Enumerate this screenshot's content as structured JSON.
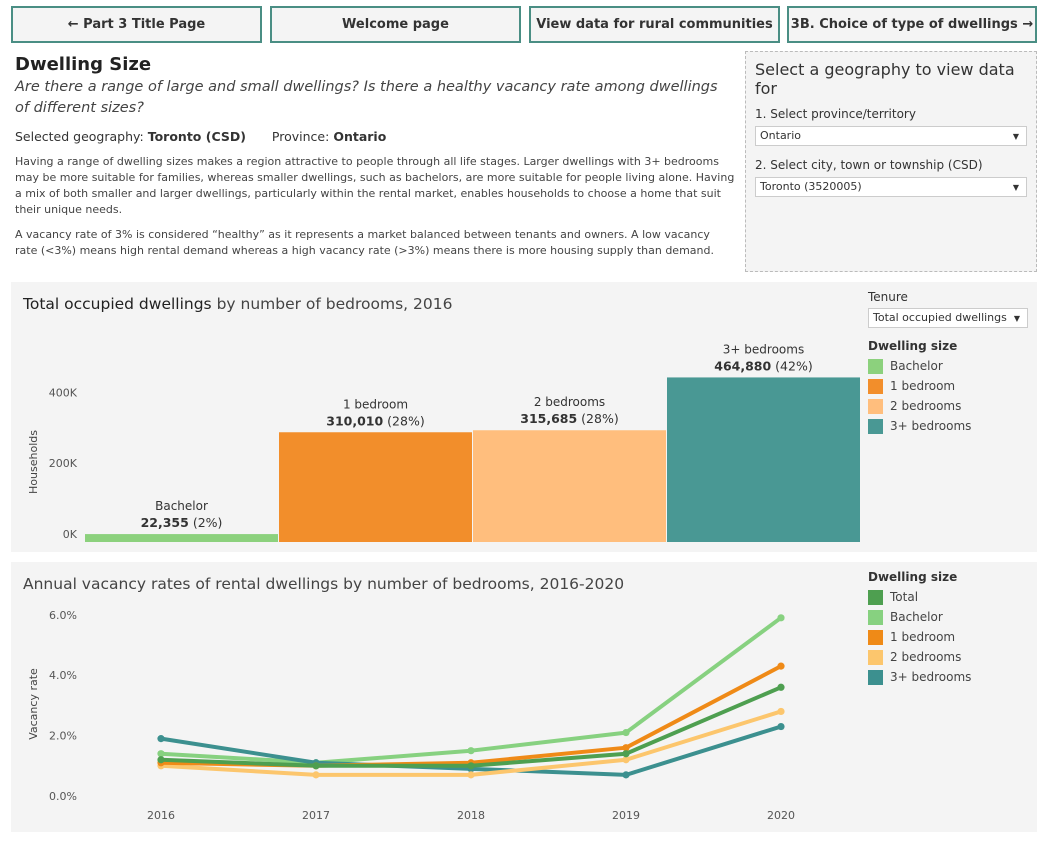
{
  "nav": {
    "btn1": "← Part 3 Title Page",
    "btn2": "Welcome page",
    "btn3": "View data for rural communities",
    "btn4": "3B. Choice of type of dwellings →"
  },
  "intro": {
    "title": "Dwelling Size",
    "subtitle": "Are there a range of large and small dwellings? Is there a healthy vacancy rate among dwellings of different sizes?",
    "geo_label": "Selected geography:",
    "geo_value": "Toronto (CSD)",
    "prov_label": "Province:",
    "prov_value": "Ontario",
    "para1": "Having a range of dwelling sizes makes a region attractive to people through all life stages. Larger dwellings with 3+ bedrooms may be more suitable for families, whereas smaller dwellings, such as bachelors, are more suitable for people living alone. Having a mix of both smaller and larger dwellings, particularly within the rental market, enables households to choose a home that suit their unique needs.",
    "para2": "A vacancy rate of 3% is considered “healthy” as it represents a market balanced between tenants and owners. A low vacancy rate (<3%) means high rental demand whereas a high vacancy rate (>3%) means there is more housing supply than demand."
  },
  "geo_selector": {
    "heading": "Select a geography to view data for",
    "province_label": "1. Select province/territory",
    "province_value": "Ontario",
    "csd_label": "2. Select city, town or township (CSD)",
    "csd_value": "Toronto (3520005)"
  },
  "colors": {
    "total": "#4e9f50",
    "bachelor": "#87d180",
    "one_bed": "#ef8a17",
    "two_bed": "#fcc66d",
    "three_bed": "#3c908f",
    "bar_bachelor": "#8cd17d",
    "bar_one": "#f28e2b",
    "bar_two": "#ffbe7d",
    "bar_three": "#499894"
  },
  "chart1": {
    "title_bold": "Total occupied dwellings",
    "title_rest": " by number of bedrooms, 2016",
    "tenure_label": "Tenure",
    "tenure_value": "Total occupied dwellings",
    "legend_title": "Dwelling size",
    "legend": [
      "Bachelor",
      "1 bedroom",
      "2 bedrooms",
      "3+ bedrooms"
    ]
  },
  "chart2": {
    "title": "Annual vacancy rates of rental dwellings by number of bedrooms, 2016-2020",
    "legend_title": "Dwelling size",
    "legend": [
      "Total",
      "Bachelor",
      "1 bedroom",
      "2 bedrooms",
      "3+ bedrooms"
    ]
  },
  "chart_data": [
    {
      "type": "bar",
      "categories": [
        "Bachelor",
        "1 bedroom",
        "2 bedrooms",
        "3+ bedrooms"
      ],
      "values": [
        22355,
        310010,
        315685,
        464880
      ],
      "value_labels": [
        "22,355",
        "310,010",
        "315,685",
        "464,880"
      ],
      "pct_labels": [
        "(2%)",
        "(28%)",
        "(28%)",
        "(42%)"
      ],
      "ylabel": "Households",
      "yticks": [
        "0K",
        "200K",
        "400K"
      ],
      "ylim": [
        0,
        500000
      ]
    },
    {
      "type": "line",
      "x": [
        "2016",
        "2017",
        "2018",
        "2019",
        "2020"
      ],
      "ylabel": "Vacancy rate",
      "yticks": [
        "0.0%",
        "2.0%",
        "4.0%",
        "6.0%"
      ],
      "ylim": [
        0,
        6.5
      ],
      "series": [
        {
          "name": "Bachelor",
          "values": [
            1.4,
            1.1,
            1.5,
            2.1,
            5.9
          ]
        },
        {
          "name": "3+ bedrooms",
          "values": [
            1.9,
            1.1,
            0.9,
            0.7,
            2.3
          ]
        },
        {
          "name": "2 bedrooms",
          "values": [
            1.0,
            0.7,
            0.7,
            1.2,
            2.8
          ]
        },
        {
          "name": "1 bedroom",
          "values": [
            1.1,
            1.0,
            1.1,
            1.6,
            4.3
          ]
        },
        {
          "name": "Total",
          "values": [
            1.2,
            1.0,
            1.0,
            1.4,
            3.6
          ]
        }
      ]
    }
  ]
}
